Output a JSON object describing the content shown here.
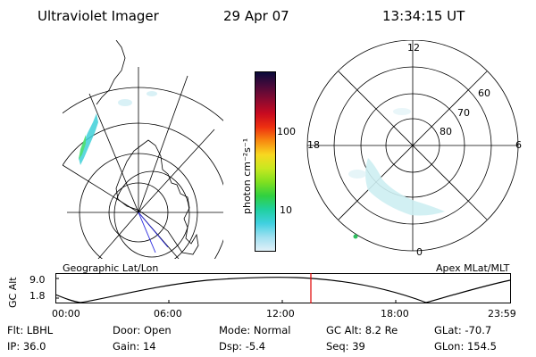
{
  "header": {
    "instrument": "Ultraviolet Imager",
    "date": "29 Apr 07",
    "time": "13:34:15 UT"
  },
  "left_panel": {
    "caption": "Geographic Lat/Lon"
  },
  "right_panel": {
    "caption": "Apex MLat/MLT",
    "mlt_labels": [
      "12",
      "18",
      "6",
      "0"
    ],
    "lat_labels": [
      "60",
      "70",
      "80"
    ]
  },
  "colorbar": {
    "unit_label": "photon cm⁻²s⁻¹",
    "tick_labels": [
      "100",
      "10"
    ],
    "colors": [
      "#0a0a3a",
      "#4a0a3a",
      "#8a0a30",
      "#c80a20",
      "#ee3010",
      "#f88a10",
      "#f8d820",
      "#c8e820",
      "#80e020",
      "#30d040",
      "#20d0a0",
      "#40d0e0",
      "#a0e0f0",
      "#e0f0f8"
    ]
  },
  "altitude_plot": {
    "y_label": "GC Alt",
    "y_ticks": [
      "9.0",
      "1.8"
    ],
    "x_ticks": [
      "00:00",
      "06:00",
      "12:00",
      "18:00",
      "23:59"
    ],
    "current_marker_color": "#e00000"
  },
  "info": {
    "row1": [
      {
        "label": "Flt:",
        "value": "LBHL"
      },
      {
        "label": "Door:",
        "value": "Open"
      },
      {
        "label": "Mode:",
        "value": "Normal"
      },
      {
        "label": "GC Alt:",
        "value": "8.2 Re"
      },
      {
        "label": "GLat:",
        "value": "-70.7"
      }
    ],
    "row2": [
      {
        "label": "IP:",
        "value": "36.0"
      },
      {
        "label": "Gain:",
        "value": "14"
      },
      {
        "label": "Dsp:",
        "value": "-5.4"
      },
      {
        "label": "Seq:",
        "value": "39"
      },
      {
        "label": "GLon:",
        "value": "154.5"
      }
    ]
  }
}
